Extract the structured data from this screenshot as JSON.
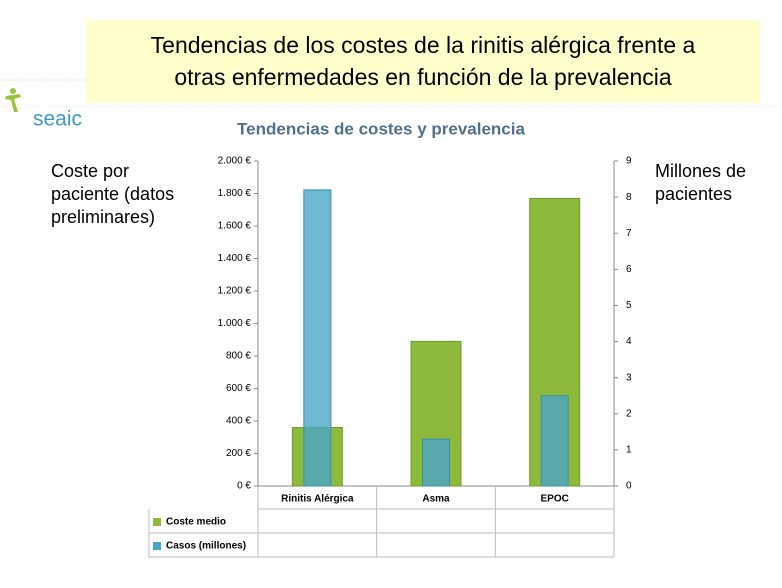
{
  "slide": {
    "title_lines": [
      "Tendencias de los costes de la rinitis alérgica frente a",
      "otras enfermedades en función de la prevalencia"
    ],
    "logo": "seaic"
  },
  "chart_data": {
    "type": "bar",
    "title": "Tendencias de costes y prevalencia",
    "y_label": "Coste por paciente (datos preliminares)",
    "y2_label": "Millones de pacientes",
    "categories": [
      "Rinitis Alérgica",
      "Asma",
      "EPOC"
    ],
    "series": [
      {
        "name": "Coste medio",
        "color": "#8dba3a",
        "values": [
          360,
          890,
          1770
        ]
      },
      {
        "name": "Casos (millones)",
        "color": "#4aa6c6",
        "axis": "y2",
        "values": [
          8.2,
          1.3,
          2.5
        ]
      }
    ],
    "ylim": [
      0,
      2000
    ],
    "yticks": [
      {
        "value": 0,
        "label": "0 €"
      },
      {
        "value": 200,
        "label": "200 €"
      },
      {
        "value": 400,
        "label": "400 €"
      },
      {
        "value": 600,
        "label": "600 €"
      },
      {
        "value": 800,
        "label": "800 €"
      },
      {
        "value": 1000,
        "label": "1.000 €"
      },
      {
        "value": 1200,
        "label": "1.200 €"
      },
      {
        "value": 1400,
        "label": "1.400 €"
      },
      {
        "value": 1600,
        "label": "1.600 €"
      },
      {
        "value": 1800,
        "label": "1.800 €"
      },
      {
        "value": 2000,
        "label": "2.000 €"
      }
    ],
    "y2lim": [
      0,
      9
    ],
    "y2ticks": [
      0,
      1,
      2,
      3,
      4,
      5,
      6,
      7,
      8,
      9
    ],
    "grid": false
  }
}
